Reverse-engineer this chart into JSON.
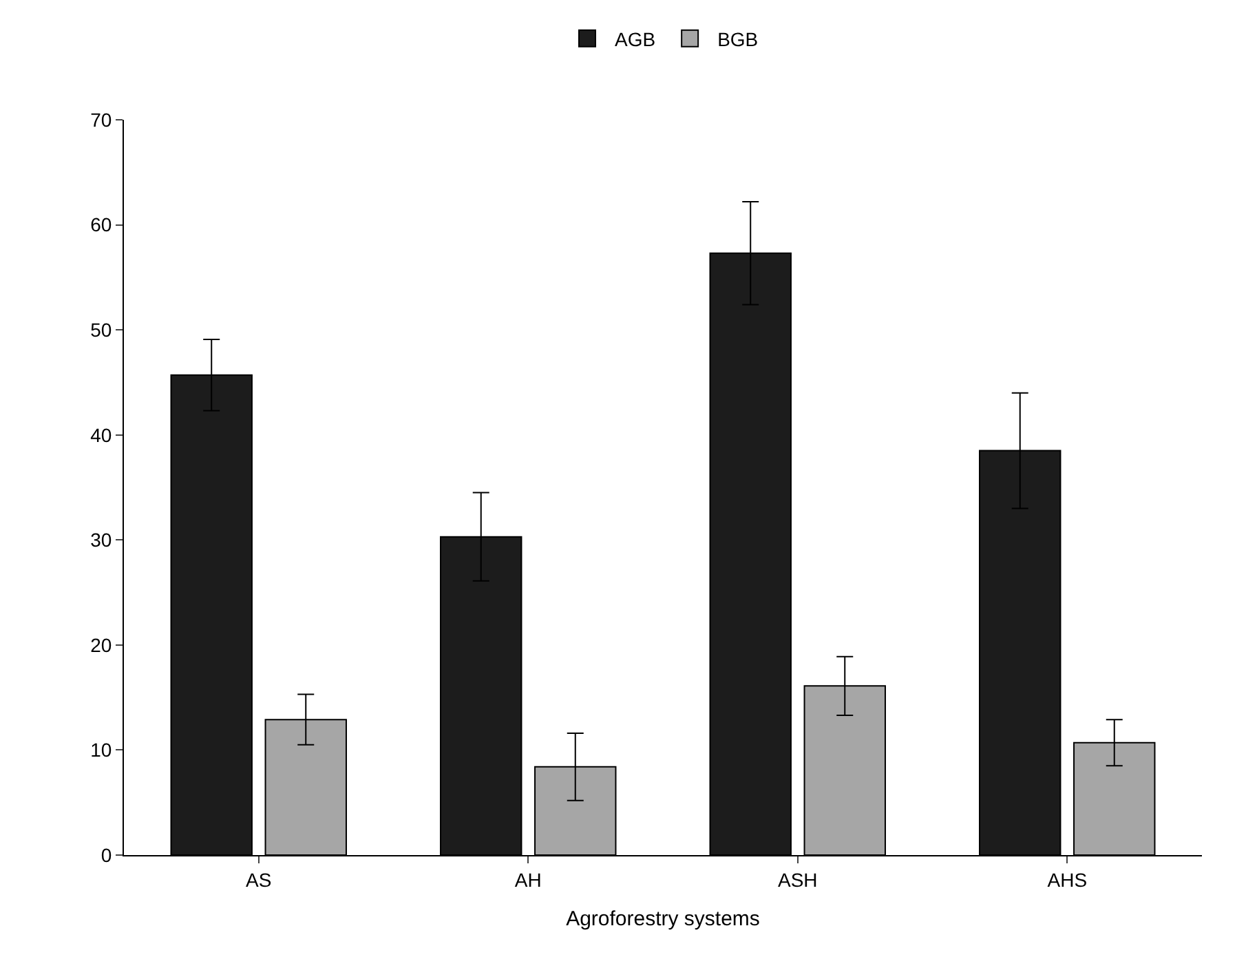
{
  "chart_data": {
    "type": "bar",
    "xlabel": "Agroforestry systems",
    "categories": [
      "AS",
      "AH",
      "ASH",
      "AHS"
    ],
    "series": [
      {
        "name": "AGB",
        "color": "#1c1c1c",
        "values": [
          45.7,
          30.3,
          57.3,
          38.5
        ],
        "errors": [
          3.4,
          4.2,
          4.9,
          5.5
        ]
      },
      {
        "name": "BGB",
        "color": "#a6a6a6",
        "values": [
          12.9,
          8.4,
          16.1,
          10.7
        ],
        "errors": [
          2.4,
          3.2,
          2.8,
          2.2
        ]
      }
    ],
    "ylim": [
      0,
      70
    ],
    "yticks": [
      0,
      10,
      20,
      30,
      40,
      50,
      60,
      70
    ],
    "legend": "top"
  }
}
